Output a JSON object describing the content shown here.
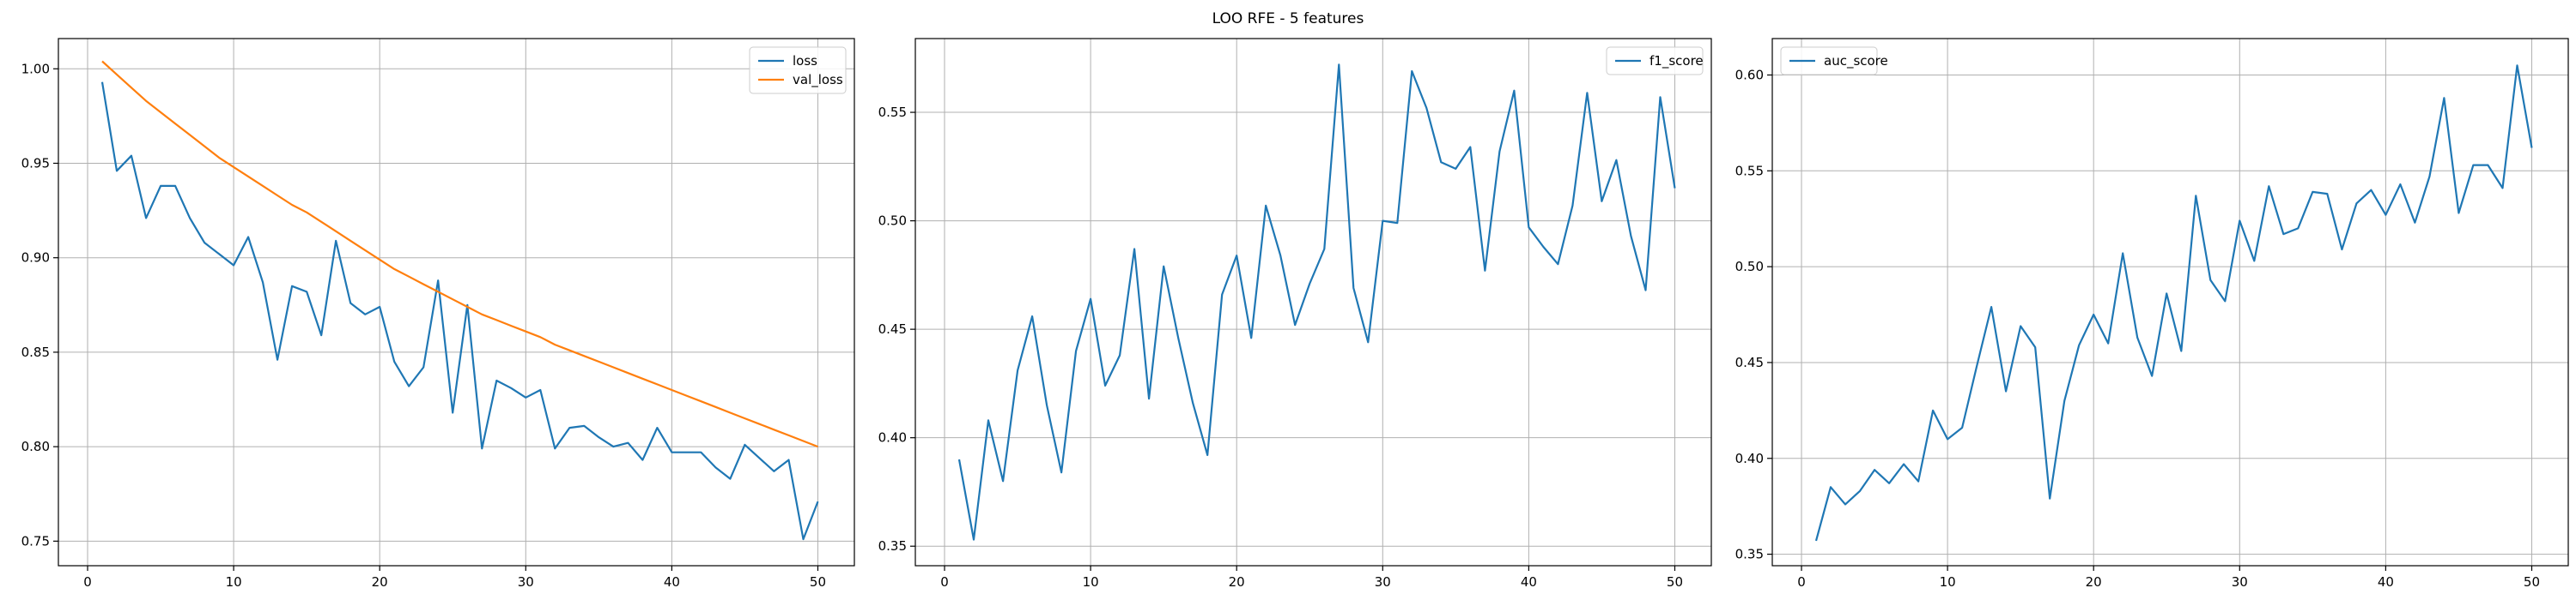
{
  "figure_title": "LOO RFE - 5 features",
  "colors": {
    "blue": "#1f77b4",
    "orange": "#ff7f0e"
  },
  "chart_data": [
    {
      "type": "line",
      "title": "",
      "xlabel": "",
      "ylabel": "",
      "grid": true,
      "legend": "top-right",
      "xlim": [
        -2,
        52.5
      ],
      "ylim": [
        0.737,
        1.016
      ],
      "xticks": [
        0,
        10,
        20,
        30,
        40,
        50
      ],
      "yticks": [
        0.75,
        0.8,
        0.85,
        0.9,
        0.95,
        1.0
      ],
      "ytick_labels": [
        "0.75",
        "0.80",
        "0.85",
        "0.90",
        "0.95",
        "1.00"
      ],
      "series": [
        {
          "name": "loss",
          "color": "#1f77b4",
          "x": [
            1,
            2,
            3,
            4,
            5,
            6,
            7,
            8,
            9,
            10,
            11,
            12,
            13,
            14,
            15,
            16,
            17,
            18,
            19,
            20,
            21,
            22,
            23,
            24,
            25,
            26,
            27,
            28,
            29,
            30,
            31,
            32,
            33,
            34,
            35,
            36,
            37,
            38,
            39,
            40,
            41,
            42,
            43,
            44,
            45,
            46,
            47,
            48,
            49,
            50
          ],
          "y": [
            0.993,
            0.946,
            0.954,
            0.921,
            0.938,
            0.938,
            0.921,
            0.908,
            0.902,
            0.896,
            0.911,
            0.887,
            0.846,
            0.885,
            0.882,
            0.859,
            0.909,
            0.876,
            0.87,
            0.874,
            0.845,
            0.832,
            0.842,
            0.888,
            0.818,
            0.875,
            0.799,
            0.835,
            0.831,
            0.826,
            0.83,
            0.799,
            0.81,
            0.811,
            0.805,
            0.8,
            0.802,
            0.793,
            0.81,
            0.797,
            0.797,
            0.797,
            0.789,
            0.783,
            0.801,
            0.794,
            0.787,
            0.793,
            0.751,
            0.771
          ]
        },
        {
          "name": "val_loss",
          "color": "#ff7f0e",
          "x": [
            1,
            2,
            3,
            4,
            5,
            6,
            7,
            8,
            9,
            10,
            11,
            12,
            13,
            14,
            15,
            16,
            17,
            18,
            19,
            20,
            21,
            22,
            23,
            24,
            25,
            26,
            27,
            28,
            29,
            30,
            31,
            32,
            33,
            34,
            35,
            36,
            37,
            38,
            39,
            40,
            41,
            42,
            43,
            44,
            45,
            46,
            47,
            48,
            49,
            50
          ],
          "y": [
            1.004,
            0.997,
            0.99,
            0.983,
            0.977,
            0.971,
            0.965,
            0.959,
            0.953,
            0.948,
            0.943,
            0.938,
            0.933,
            0.928,
            0.924,
            0.919,
            0.914,
            0.909,
            0.904,
            0.899,
            0.894,
            0.89,
            0.886,
            0.882,
            0.878,
            0.874,
            0.87,
            0.867,
            0.864,
            0.861,
            0.858,
            0.854,
            0.851,
            0.848,
            0.845,
            0.842,
            0.839,
            0.836,
            0.833,
            0.83,
            0.827,
            0.824,
            0.821,
            0.818,
            0.815,
            0.812,
            0.809,
            0.806,
            0.803,
            0.8
          ]
        }
      ]
    },
    {
      "type": "line",
      "title": "",
      "xlabel": "",
      "ylabel": "",
      "grid": true,
      "legend": "top-right",
      "xlim": [
        -2,
        52.5
      ],
      "ylim": [
        0.341,
        0.584
      ],
      "xticks": [
        0,
        10,
        20,
        30,
        40,
        50
      ],
      "yticks": [
        0.35,
        0.4,
        0.45,
        0.5,
        0.55
      ],
      "ytick_labels": [
        "0.35",
        "0.40",
        "0.45",
        "0.50",
        "0.55"
      ],
      "series": [
        {
          "name": "f1_score",
          "color": "#1f77b4",
          "x": [
            1,
            2,
            3,
            4,
            5,
            6,
            7,
            8,
            9,
            10,
            11,
            12,
            13,
            14,
            15,
            16,
            17,
            18,
            19,
            20,
            21,
            22,
            23,
            24,
            25,
            26,
            27,
            28,
            29,
            30,
            31,
            32,
            33,
            34,
            35,
            36,
            37,
            38,
            39,
            40,
            41,
            42,
            43,
            44,
            45,
            46,
            47,
            48,
            49,
            50
          ],
          "y": [
            0.39,
            0.353,
            0.408,
            0.38,
            0.431,
            0.456,
            0.415,
            0.384,
            0.44,
            0.464,
            0.424,
            0.438,
            0.487,
            0.418,
            0.479,
            0.446,
            0.416,
            0.392,
            0.466,
            0.484,
            0.446,
            0.507,
            0.484,
            0.452,
            0.471,
            0.487,
            0.572,
            0.469,
            0.444,
            0.5,
            0.499,
            0.569,
            0.552,
            0.527,
            0.524,
            0.534,
            0.477,
            0.532,
            0.56,
            0.497,
            0.488,
            0.48,
            0.507,
            0.559,
            0.509,
            0.528,
            0.493,
            0.468,
            0.557,
            0.515
          ]
        }
      ]
    },
    {
      "type": "line",
      "title": "",
      "xlabel": "",
      "ylabel": "",
      "grid": true,
      "legend": "top-left",
      "xlim": [
        -2,
        52.5
      ],
      "ylim": [
        0.344,
        0.619
      ],
      "xticks": [
        0,
        10,
        20,
        30,
        40,
        50
      ],
      "yticks": [
        0.35,
        0.4,
        0.45,
        0.5,
        0.55,
        0.6
      ],
      "ytick_labels": [
        "0.35",
        "0.40",
        "0.45",
        "0.50",
        "0.55",
        "0.60"
      ],
      "series": [
        {
          "name": "auc_score",
          "color": "#1f77b4",
          "x": [
            1,
            2,
            3,
            4,
            5,
            6,
            7,
            8,
            9,
            10,
            11,
            12,
            13,
            14,
            15,
            16,
            17,
            18,
            19,
            20,
            21,
            22,
            23,
            24,
            25,
            26,
            27,
            28,
            29,
            30,
            31,
            32,
            33,
            34,
            35,
            36,
            37,
            38,
            39,
            40,
            41,
            42,
            43,
            44,
            45,
            46,
            47,
            48,
            49,
            50
          ],
          "y": [
            0.357,
            0.385,
            0.376,
            0.383,
            0.394,
            0.387,
            0.397,
            0.388,
            0.425,
            0.41,
            0.416,
            0.448,
            0.479,
            0.435,
            0.469,
            0.458,
            0.379,
            0.43,
            0.459,
            0.475,
            0.46,
            0.507,
            0.463,
            0.443,
            0.486,
            0.456,
            0.537,
            0.493,
            0.482,
            0.524,
            0.503,
            0.542,
            0.517,
            0.52,
            0.539,
            0.538,
            0.509,
            0.533,
            0.54,
            0.527,
            0.543,
            0.523,
            0.547,
            0.588,
            0.528,
            0.553,
            0.553,
            0.541,
            0.605,
            0.562
          ]
        }
      ]
    }
  ]
}
